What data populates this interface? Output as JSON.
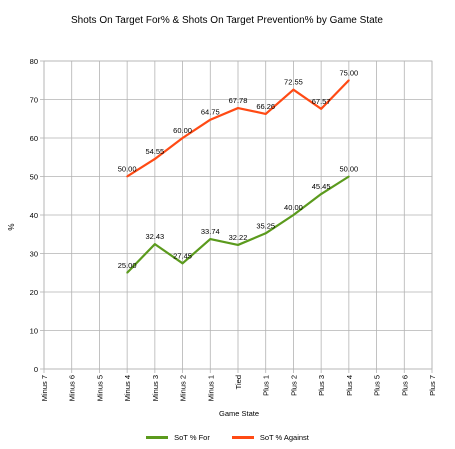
{
  "chart_data": {
    "type": "line",
    "title": "Shots On Target For% & Shots On Target Prevention% by Game State",
    "xlabel": "Game State",
    "ylabel": "%",
    "ylim": [
      0,
      80
    ],
    "yticks": [
      "0",
      "10",
      "20",
      "30",
      "40",
      "50",
      "60",
      "70",
      "80"
    ],
    "grid": true,
    "legend": "bottom",
    "categories": [
      "Minus 7",
      "Minus 6",
      "Minus 5",
      "Minus 4",
      "Minus 3",
      "Minus 2",
      "Minus 1",
      "Tied",
      "Plus 1",
      "Plus 2",
      "Plus 3",
      "Plus 4",
      "Plus 5",
      "Plus 6",
      "Plus 7"
    ],
    "series": [
      {
        "name": "SoT % For",
        "color": "#5b9a1d",
        "values": [
          null,
          null,
          null,
          25.0,
          32.43,
          27.45,
          33.74,
          32.22,
          35.25,
          40.0,
          45.45,
          50.0,
          null,
          null,
          null
        ],
        "labels": [
          null,
          null,
          null,
          "25.00",
          "32.43",
          "27.45",
          "33.74",
          "32.22",
          "35.25",
          "40.00",
          "45.45",
          "50.00",
          null,
          null,
          null
        ]
      },
      {
        "name": "SoT % Against",
        "color": "#ff4a14",
        "values": [
          null,
          null,
          null,
          50.0,
          54.55,
          60.0,
          64.75,
          67.78,
          66.26,
          72.55,
          67.57,
          75.0,
          null,
          null,
          null
        ],
        "labels": [
          null,
          null,
          null,
          "50.00",
          "54.55",
          "60.00",
          "64.75",
          "67.78",
          "66.26",
          "72.55",
          "67.57",
          "75.00",
          null,
          null,
          null
        ]
      }
    ]
  }
}
